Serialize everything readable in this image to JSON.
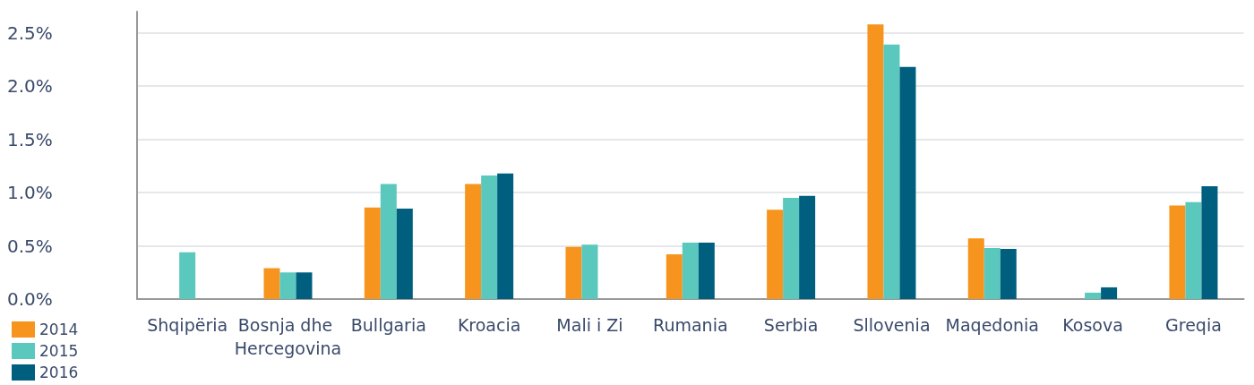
{
  "chart_data": {
    "type": "bar",
    "categories": [
      "Shqipëria",
      "Bosnja dhe Hercegovina",
      "Bullgaria",
      "Kroacia",
      "Mali i Zi",
      "Rumania",
      "Serbia",
      "Sllovenia",
      "Maqedonia",
      "Kosova",
      "Greqia"
    ],
    "series": [
      {
        "name": "2014",
        "color": "#f7941d",
        "values": [
          null,
          0.29,
          0.86,
          1.08,
          0.49,
          0.42,
          0.84,
          2.58,
          0.57,
          null,
          0.88
        ]
      },
      {
        "name": "2015",
        "color": "#5bc8bd",
        "values": [
          0.44,
          0.25,
          1.08,
          1.16,
          0.51,
          0.53,
          0.95,
          2.39,
          0.48,
          0.06,
          0.91
        ]
      },
      {
        "name": "2016",
        "color": "#005f7f",
        "values": [
          null,
          0.25,
          0.85,
          1.18,
          null,
          0.53,
          0.97,
          2.18,
          0.47,
          0.11,
          1.06
        ]
      }
    ],
    "ylim": [
      0,
      2.7
    ],
    "yticks": [
      {
        "value": 0,
        "label": "0.0%"
      },
      {
        "value": 0.5,
        "label": "0.5%"
      },
      {
        "value": 1,
        "label": "1.0%"
      },
      {
        "value": 1.5,
        "label": "1.5%"
      },
      {
        "value": 2,
        "label": "2.0%"
      },
      {
        "value": 2.5,
        "label": "2.5%"
      }
    ],
    "grid": "y",
    "legend": "bottom left"
  }
}
